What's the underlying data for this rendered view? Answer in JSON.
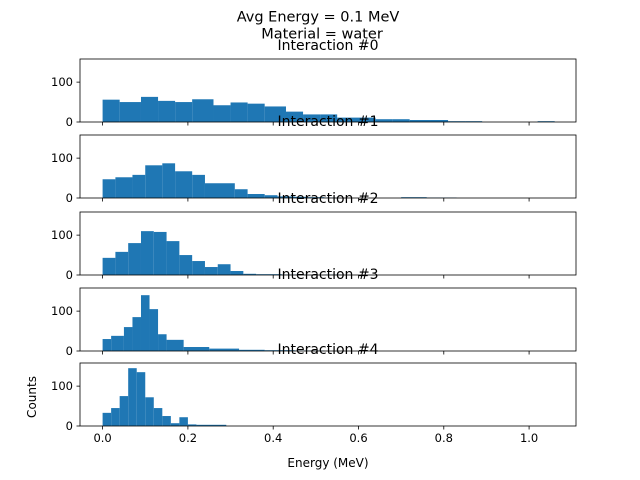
{
  "figure": {
    "suptitle_line1": "Avg Energy = 0.1 MeV",
    "suptitle_line2": "Material = water",
    "xlabel": "Energy (MeV)",
    "ylabel": "Counts",
    "bar_color": "#1f77b4"
  },
  "chart_data": [
    {
      "type": "bar",
      "title": "Interaction #0",
      "x_ticks": [
        "0.0",
        "0.2",
        "0.4",
        "0.6",
        "0.8",
        "1.0"
      ],
      "y_ticks": [
        "0",
        "100"
      ],
      "xlim": [
        -0.053,
        1.11
      ],
      "ylim": [
        0,
        158
      ],
      "bins": [
        {
          "x0": 0.0,
          "x1": 0.04,
          "count": 56
        },
        {
          "x0": 0.04,
          "x1": 0.09,
          "count": 50
        },
        {
          "x0": 0.09,
          "x1": 0.13,
          "count": 63
        },
        {
          "x0": 0.13,
          "x1": 0.17,
          "count": 53
        },
        {
          "x0": 0.17,
          "x1": 0.21,
          "count": 50
        },
        {
          "x0": 0.21,
          "x1": 0.26,
          "count": 57
        },
        {
          "x0": 0.26,
          "x1": 0.3,
          "count": 42
        },
        {
          "x0": 0.3,
          "x1": 0.34,
          "count": 49
        },
        {
          "x0": 0.34,
          "x1": 0.38,
          "count": 46
        },
        {
          "x0": 0.38,
          "x1": 0.43,
          "count": 39
        },
        {
          "x0": 0.43,
          "x1": 0.47,
          "count": 26
        },
        {
          "x0": 0.47,
          "x1": 0.51,
          "count": 19
        },
        {
          "x0": 0.51,
          "x1": 0.55,
          "count": 19
        },
        {
          "x0": 0.55,
          "x1": 0.6,
          "count": 11
        },
        {
          "x0": 0.6,
          "x1": 0.64,
          "count": 11
        },
        {
          "x0": 0.64,
          "x1": 0.68,
          "count": 7
        },
        {
          "x0": 0.68,
          "x1": 0.72,
          "count": 7
        },
        {
          "x0": 0.72,
          "x1": 0.77,
          "count": 5
        },
        {
          "x0": 0.77,
          "x1": 0.81,
          "count": 5
        },
        {
          "x0": 0.81,
          "x1": 0.85,
          "count": 2
        },
        {
          "x0": 0.85,
          "x1": 0.89,
          "count": 2
        },
        {
          "x0": 1.02,
          "x1": 1.06,
          "count": 2
        }
      ]
    },
    {
      "type": "bar",
      "title": "Interaction #1",
      "x_ticks": [
        "0.0",
        "0.2",
        "0.4",
        "0.6",
        "0.8",
        "1.0"
      ],
      "y_ticks": [
        "0",
        "100"
      ],
      "xlim": [
        -0.053,
        1.11
      ],
      "ylim": [
        0,
        158
      ],
      "bins": [
        {
          "x0": 0.0,
          "x1": 0.03,
          "count": 47
        },
        {
          "x0": 0.03,
          "x1": 0.07,
          "count": 52
        },
        {
          "x0": 0.07,
          "x1": 0.1,
          "count": 58
        },
        {
          "x0": 0.1,
          "x1": 0.14,
          "count": 82
        },
        {
          "x0": 0.14,
          "x1": 0.17,
          "count": 87
        },
        {
          "x0": 0.17,
          "x1": 0.21,
          "count": 67
        },
        {
          "x0": 0.21,
          "x1": 0.24,
          "count": 58
        },
        {
          "x0": 0.24,
          "x1": 0.31,
          "count": 37
        },
        {
          "x0": 0.31,
          "x1": 0.34,
          "count": 22
        },
        {
          "x0": 0.34,
          "x1": 0.38,
          "count": 10
        },
        {
          "x0": 0.38,
          "x1": 0.41,
          "count": 7
        },
        {
          "x0": 0.41,
          "x1": 0.45,
          "count": 4
        },
        {
          "x0": 0.45,
          "x1": 0.48,
          "count": 3
        },
        {
          "x0": 0.48,
          "x1": 0.52,
          "count": 2
        },
        {
          "x0": 0.52,
          "x1": 0.55,
          "count": 1
        },
        {
          "x0": 0.7,
          "x1": 0.76,
          "count": 2
        },
        {
          "x0": 0.76,
          "x1": 0.83,
          "count": 1
        }
      ]
    },
    {
      "type": "bar",
      "title": "Interaction #2",
      "x_ticks": [
        "0.0",
        "0.2",
        "0.4",
        "0.6",
        "0.8",
        "1.0"
      ],
      "y_ticks": [
        "0",
        "100"
      ],
      "xlim": [
        -0.053,
        1.11
      ],
      "ylim": [
        0,
        158
      ],
      "bins": [
        {
          "x0": 0.0,
          "x1": 0.03,
          "count": 43
        },
        {
          "x0": 0.03,
          "x1": 0.06,
          "count": 58
        },
        {
          "x0": 0.06,
          "x1": 0.09,
          "count": 80
        },
        {
          "x0": 0.09,
          "x1": 0.12,
          "count": 110
        },
        {
          "x0": 0.12,
          "x1": 0.15,
          "count": 108
        },
        {
          "x0": 0.15,
          "x1": 0.18,
          "count": 85
        },
        {
          "x0": 0.18,
          "x1": 0.21,
          "count": 50
        },
        {
          "x0": 0.21,
          "x1": 0.24,
          "count": 35
        },
        {
          "x0": 0.24,
          "x1": 0.27,
          "count": 20
        },
        {
          "x0": 0.27,
          "x1": 0.3,
          "count": 27
        },
        {
          "x0": 0.3,
          "x1": 0.33,
          "count": 10
        },
        {
          "x0": 0.33,
          "x1": 0.36,
          "count": 3
        },
        {
          "x0": 0.36,
          "x1": 0.42,
          "count": 2
        },
        {
          "x0": 0.42,
          "x1": 0.48,
          "count": 1
        },
        {
          "x0": 0.52,
          "x1": 0.56,
          "count": 1
        }
      ]
    },
    {
      "type": "bar",
      "title": "Interaction #3",
      "x_ticks": [
        "0.0",
        "0.2",
        "0.4",
        "0.6",
        "0.8",
        "1.0"
      ],
      "y_ticks": [
        "0",
        "100"
      ],
      "xlim": [
        -0.053,
        1.11
      ],
      "ylim": [
        0,
        158
      ],
      "bins": [
        {
          "x0": 0.0,
          "x1": 0.02,
          "count": 30
        },
        {
          "x0": 0.02,
          "x1": 0.05,
          "count": 38
        },
        {
          "x0": 0.05,
          "x1": 0.07,
          "count": 60
        },
        {
          "x0": 0.07,
          "x1": 0.09,
          "count": 85
        },
        {
          "x0": 0.09,
          "x1": 0.11,
          "count": 140
        },
        {
          "x0": 0.11,
          "x1": 0.13,
          "count": 105
        },
        {
          "x0": 0.13,
          "x1": 0.15,
          "count": 42
        },
        {
          "x0": 0.15,
          "x1": 0.19,
          "count": 28
        },
        {
          "x0": 0.19,
          "x1": 0.25,
          "count": 10
        },
        {
          "x0": 0.25,
          "x1": 0.32,
          "count": 6
        },
        {
          "x0": 0.32,
          "x1": 0.38,
          "count": 3
        },
        {
          "x0": 0.38,
          "x1": 0.45,
          "count": 2
        },
        {
          "x0": 0.45,
          "x1": 0.52,
          "count": 1
        }
      ]
    },
    {
      "type": "bar",
      "title": "Interaction #4",
      "x_ticks": [
        "0.0",
        "0.2",
        "0.4",
        "0.6",
        "0.8",
        "1.0"
      ],
      "y_ticks": [
        "0",
        "100"
      ],
      "xlim": [
        -0.053,
        1.11
      ],
      "ylim": [
        0,
        158
      ],
      "bins": [
        {
          "x0": 0.0,
          "x1": 0.02,
          "count": 33
        },
        {
          "x0": 0.02,
          "x1": 0.04,
          "count": 45
        },
        {
          "x0": 0.04,
          "x1": 0.06,
          "count": 75
        },
        {
          "x0": 0.06,
          "x1": 0.08,
          "count": 145
        },
        {
          "x0": 0.08,
          "x1": 0.1,
          "count": 135
        },
        {
          "x0": 0.1,
          "x1": 0.12,
          "count": 72
        },
        {
          "x0": 0.12,
          "x1": 0.14,
          "count": 45
        },
        {
          "x0": 0.14,
          "x1": 0.16,
          "count": 25
        },
        {
          "x0": 0.16,
          "x1": 0.18,
          "count": 7
        },
        {
          "x0": 0.18,
          "x1": 0.2,
          "count": 22
        },
        {
          "x0": 0.2,
          "x1": 0.22,
          "count": 4
        },
        {
          "x0": 0.22,
          "x1": 0.29,
          "count": 3
        }
      ]
    }
  ]
}
